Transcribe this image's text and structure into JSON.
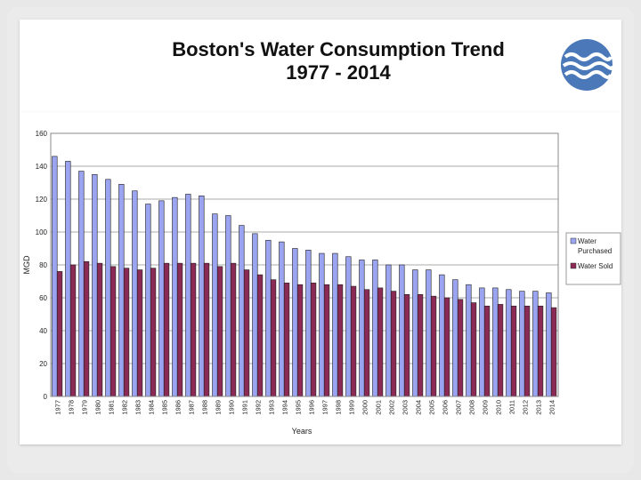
{
  "slide": {
    "title_line1": "Boston's Water Consumption Trend",
    "title_line2": "1977 - 2014",
    "logo_icon": "water-waves-icon"
  },
  "chart_data": {
    "type": "bar",
    "title": "Boston's Water Consumption Trend 1977 - 2014",
    "xlabel": "Years",
    "ylabel": "MGD",
    "ylim": [
      0,
      160
    ],
    "yticks": [
      0,
      20,
      40,
      60,
      80,
      100,
      120,
      140,
      160
    ],
    "grid": true,
    "legend_position": "right",
    "categories": [
      "1977",
      "1978",
      "1979",
      "1980",
      "1981",
      "1982",
      "1983",
      "1984",
      "1985",
      "1986",
      "1987",
      "1988",
      "1989",
      "1990",
      "1991",
      "1992",
      "1993",
      "1994",
      "1995",
      "1996",
      "1997",
      "1998",
      "1999",
      "2000",
      "2001",
      "2002",
      "2003",
      "2004",
      "2005",
      "2006",
      "2007",
      "2008",
      "2009",
      "2010",
      "2011",
      "2012",
      "2013",
      "2014"
    ],
    "series": [
      {
        "name": "Water Purchased",
        "legend_label": [
          "Water",
          "Purchased"
        ],
        "color": "#9aa4f0",
        "values": [
          146,
          143,
          137,
          135,
          132,
          129,
          125,
          117,
          119,
          121,
          123,
          122,
          111,
          110,
          104,
          99,
          95,
          94,
          90,
          89,
          87,
          87,
          85,
          83,
          83,
          80,
          80,
          77,
          77,
          74,
          71,
          68,
          66,
          66,
          65,
          64,
          64,
          63
        ]
      },
      {
        "name": "Water Sold",
        "legend_label": [
          "Water Sold"
        ],
        "color": "#8a2a55",
        "values": [
          76,
          80,
          82,
          81,
          79,
          78,
          77,
          78,
          81,
          81,
          81,
          81,
          79,
          81,
          77,
          74,
          71,
          69,
          68,
          69,
          68,
          68,
          67,
          65,
          66,
          64,
          62,
          62,
          61,
          60,
          59,
          57,
          55,
          56,
          55,
          55,
          55,
          54
        ]
      }
    ]
  }
}
